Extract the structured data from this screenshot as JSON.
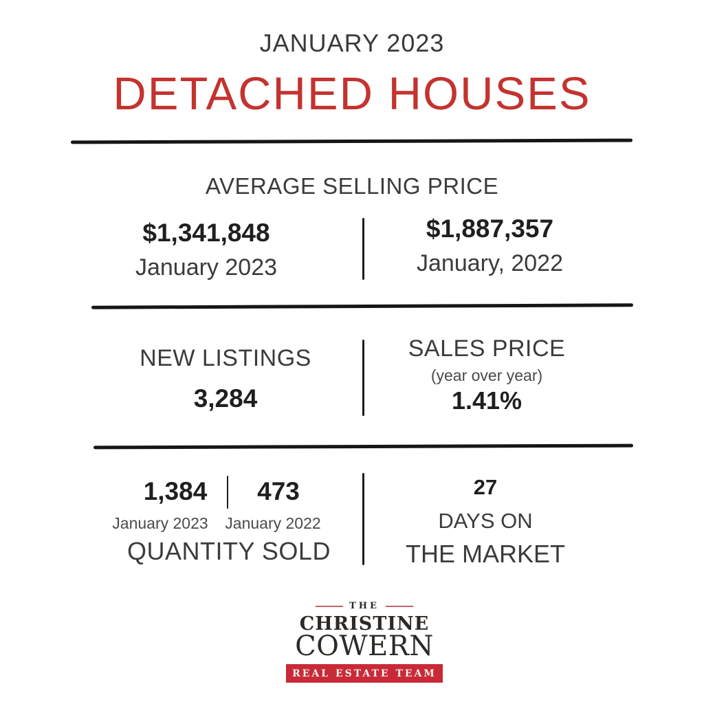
{
  "header": {
    "month": "JANUARY 2023",
    "title": "DETACHED HOUSES"
  },
  "colors": {
    "title_red": "#c4332f",
    "logo_box_red": "#c92a38",
    "logo_accent_line": "#bf6468",
    "rule_black": "#161616",
    "text_dark": "#1f1f1f",
    "text_gray": "#3b3b3b"
  },
  "sections": {
    "average_selling_price": {
      "heading": "AVERAGE SELLING PRICE",
      "current": {
        "value": "$1,341,848",
        "label": "January 2023"
      },
      "previous": {
        "value": "$1,887,357",
        "label": "January, 2022"
      }
    },
    "new_listings": {
      "heading": "NEW LISTINGS",
      "value": "3,284"
    },
    "sales_price": {
      "heading": "SALES PRICE",
      "subheading": "(year over year)",
      "value": "1.41%"
    },
    "quantity_sold": {
      "heading": "QUANTITY SOLD",
      "current": {
        "value": "1,384",
        "label": "January 2023"
      },
      "previous": {
        "value": "473",
        "label": "January 2022"
      }
    },
    "days_on_market": {
      "value": "27",
      "line1": "DAYS ON",
      "line2": "THE MARKET"
    }
  },
  "logo": {
    "the": "THE",
    "first_name": "CHRISTINE",
    "last_name": "COWERN",
    "team": "REAL ESTATE TEAM"
  }
}
